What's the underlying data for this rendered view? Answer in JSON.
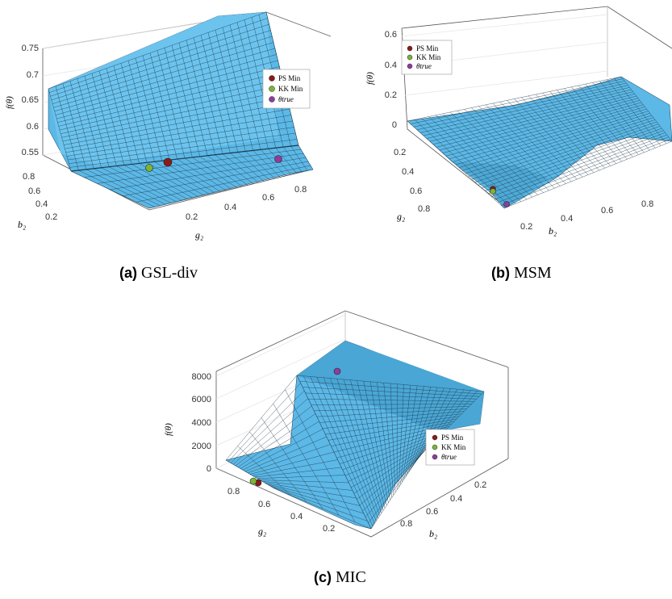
{
  "colors": {
    "surface": "#5cb8e6",
    "mesh": "#1d3a4d",
    "axis": "#555555",
    "grid": "#dcdcdc",
    "ps_min": "#8b1a1a",
    "kk_min": "#7ab535",
    "theta_true": "#8e3d9c"
  },
  "chart_data": [
    {
      "type": "surface",
      "caption_label": "(a)",
      "caption_text": "GSL-div",
      "zlabel": "f(θ)",
      "xlabel": "g₂",
      "ylabel": "b₂",
      "z_ticks": [
        "0.75",
        "0.7",
        "0.65",
        "0.6",
        "0.55"
      ],
      "x_ticks": [
        "0.2",
        "0.4",
        "0.6",
        "0.8"
      ],
      "y_ticks": [
        "0.8",
        "0.6",
        "0.4",
        "0.2"
      ],
      "zlim": [
        0.54,
        0.75
      ],
      "legend": [
        "PS Min",
        "KK Min",
        "θtrue"
      ],
      "legend_position": "right"
    },
    {
      "type": "surface",
      "caption_label": "(b)",
      "caption_text": "MSM",
      "zlabel": "f(θ)",
      "xlabel": "b₂",
      "ylabel": "g₂",
      "z_ticks": [
        "0.6",
        "0.4",
        "0.2",
        "0"
      ],
      "x_ticks": [
        "0.2",
        "0.4",
        "0.6",
        "0.8"
      ],
      "y_ticks": [
        "0.2",
        "0.4",
        "0.6",
        "0.8"
      ],
      "zlim": [
        0,
        0.6
      ],
      "legend": [
        "PS Min",
        "KK Min",
        "θtrue"
      ],
      "legend_position": "top-left"
    },
    {
      "type": "surface",
      "caption_label": "(c)",
      "caption_text": "MIC",
      "zlabel": "f(θ)",
      "xlabel": "g₂",
      "ylabel": "b₂",
      "z_ticks": [
        "8000",
        "6000",
        "4000",
        "2000",
        "0"
      ],
      "x_ticks": [
        "0.8",
        "0.6",
        "0.4",
        "0.2"
      ],
      "y_ticks": [
        "0.2",
        "0.4",
        "0.6",
        "0.8"
      ],
      "zlim": [
        0,
        8500
      ],
      "legend": [
        "PS Min",
        "KK Min",
        "θtrue"
      ],
      "legend_position": "bottom-right"
    }
  ]
}
